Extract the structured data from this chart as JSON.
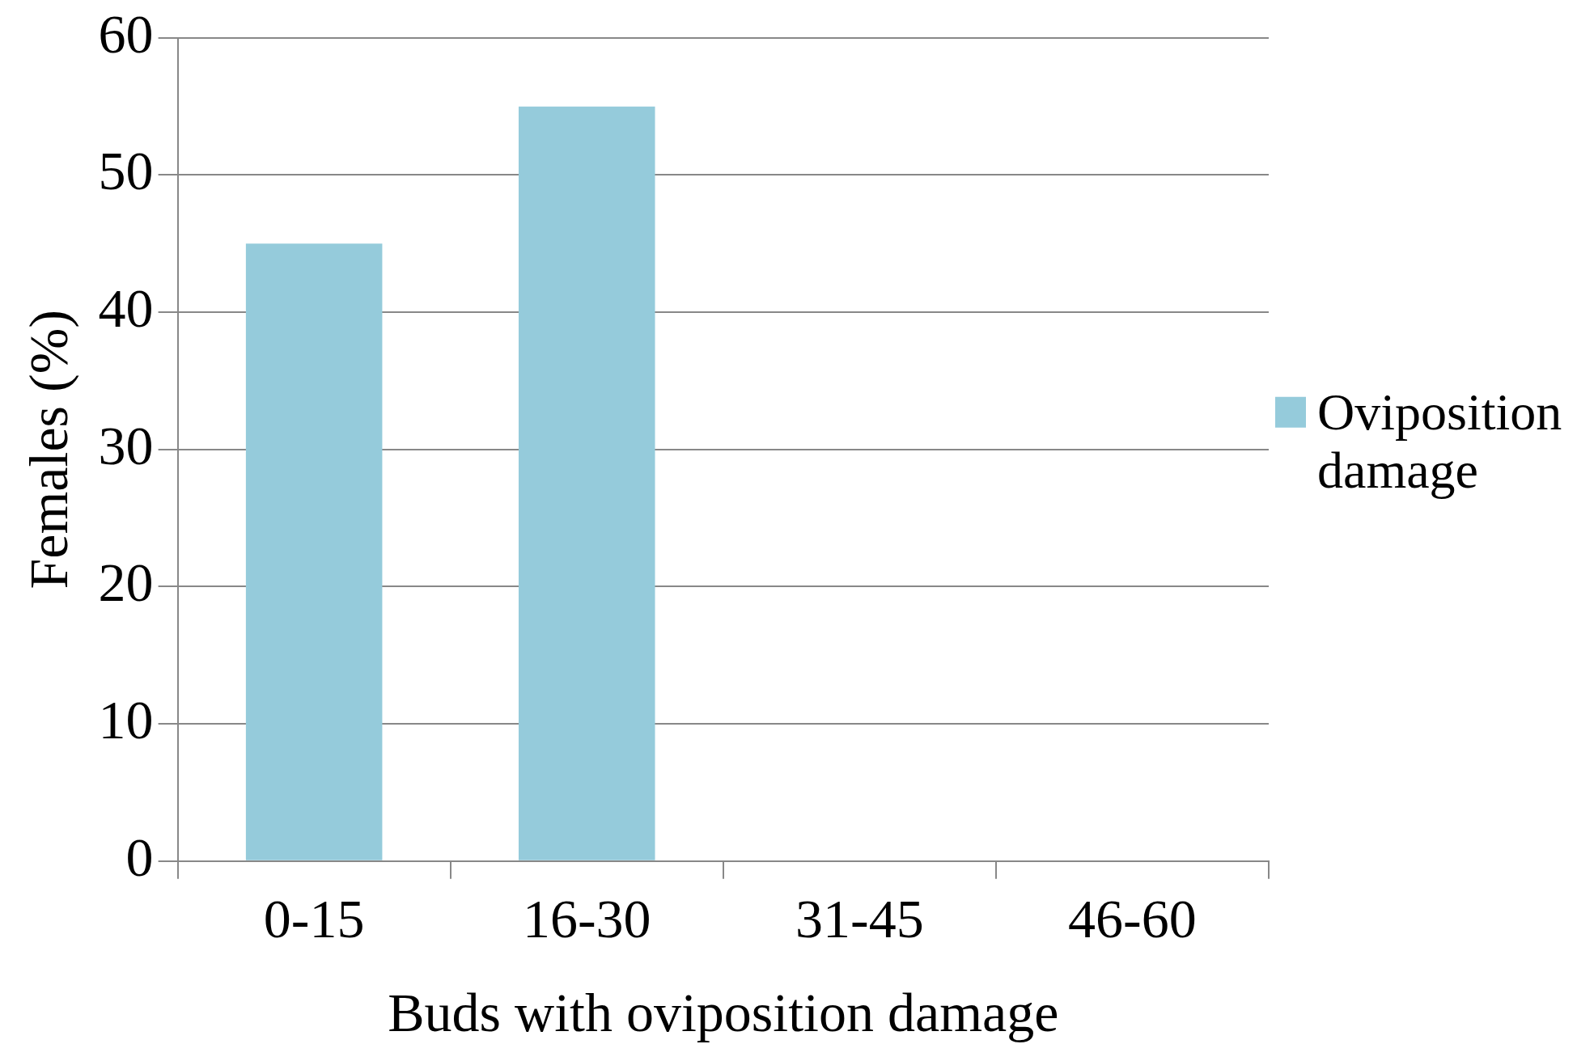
{
  "chart_data": {
    "type": "bar",
    "xlabel": "Buds with oviposition damage",
    "ylabel": "Females (%)",
    "categories": [
      "0-15",
      "16-30",
      "31-45",
      "46-60"
    ],
    "series": [
      {
        "name": "Oviposition damage",
        "color": "#95cbdb",
        "values": [
          45,
          55,
          0,
          0
        ]
      }
    ],
    "ylim": [
      0,
      60
    ],
    "yticks": [
      0,
      10,
      20,
      30,
      40,
      50,
      60
    ],
    "grid": "y",
    "legend": "right"
  }
}
